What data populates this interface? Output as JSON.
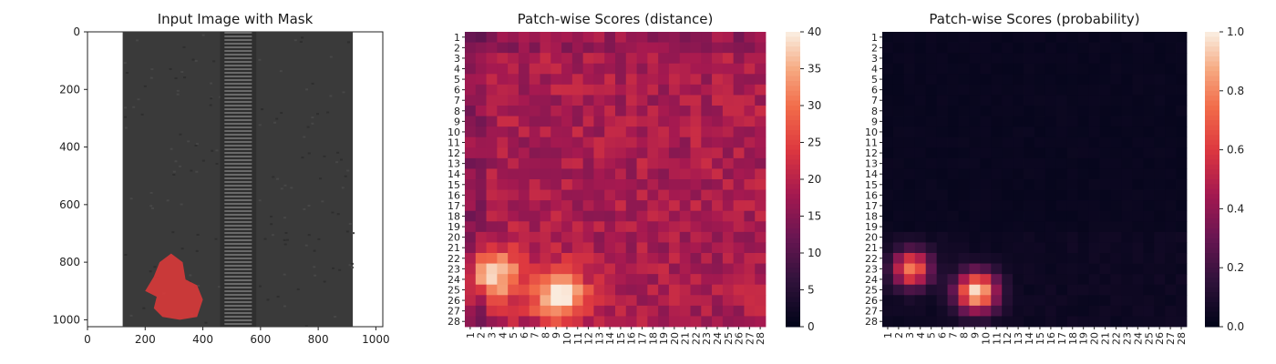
{
  "chart_data": [
    {
      "type": "image",
      "title": "Input Image with Mask",
      "x_ticks": [
        "0",
        "200",
        "400",
        "600",
        "800",
        "1000"
      ],
      "y_ticks": [
        "0",
        "200",
        "400",
        "600",
        "800",
        "1000"
      ],
      "xlim": [
        0,
        1024
      ],
      "ylim": [
        1024,
        0
      ],
      "mask_color": "#d93a3a",
      "image_description_colors": {
        "background": "#ffffff",
        "fabric": "#3a3a3a",
        "zipper": "#555555"
      }
    },
    {
      "type": "heatmap",
      "title": "Patch-wise Scores (distance)",
      "rows": [
        "1",
        "2",
        "3",
        "4",
        "5",
        "6",
        "7",
        "8",
        "9",
        "10",
        "11",
        "12",
        "13",
        "14",
        "15",
        "16",
        "17",
        "18",
        "19",
        "20",
        "21",
        "22",
        "23",
        "24",
        "25",
        "26",
        "27",
        "28"
      ],
      "cols": [
        "1",
        "2",
        "3",
        "4",
        "5",
        "6",
        "7",
        "8",
        "9",
        "10",
        "11",
        "12",
        "13",
        "14",
        "15",
        "16",
        "17",
        "18",
        "19",
        "20",
        "21",
        "22",
        "23",
        "24",
        "25",
        "26",
        "27",
        "28"
      ],
      "vmin": 0,
      "vmax": 40,
      "colorbar_ticks": [
        "0",
        "5",
        "10",
        "15",
        "20",
        "25",
        "30",
        "35",
        "40"
      ],
      "colormap": "rocket",
      "hotspot_value_range": [
        10,
        40
      ]
    },
    {
      "type": "heatmap",
      "title": "Patch-wise Scores (probability)",
      "rows": [
        "1",
        "2",
        "3",
        "4",
        "5",
        "6",
        "7",
        "8",
        "9",
        "10",
        "11",
        "12",
        "13",
        "14",
        "15",
        "16",
        "17",
        "18",
        "19",
        "20",
        "21",
        "22",
        "23",
        "24",
        "25",
        "26",
        "27",
        "28"
      ],
      "cols": [
        "1",
        "2",
        "3",
        "4",
        "5",
        "6",
        "7",
        "8",
        "9",
        "10",
        "11",
        "12",
        "13",
        "14",
        "15",
        "16",
        "17",
        "18",
        "19",
        "20",
        "21",
        "22",
        "23",
        "24",
        "25",
        "26",
        "27",
        "28"
      ],
      "vmin": 0,
      "vmax": 1,
      "colorbar_ticks": [
        "0.0",
        "0.2",
        "0.4",
        "0.6",
        "0.8",
        "1.0"
      ],
      "colormap": "rocket"
    }
  ]
}
